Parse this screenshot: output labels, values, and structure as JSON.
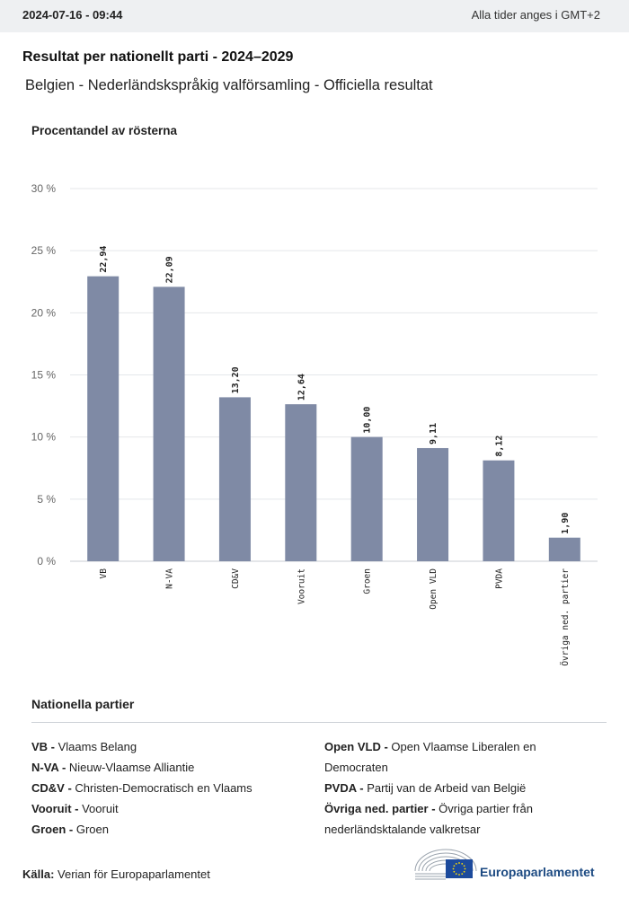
{
  "header": {
    "timestamp": "2024-07-16 - 09:44",
    "timezone_note": "Alla tider anges i GMT+2"
  },
  "title": "Resultat per nationellt parti - 2024–2029",
  "subtitle": "Belgien - Nederländskspråkig valförsamling - Officiella resultat",
  "chart_data": {
    "type": "bar",
    "title": "Resultat per nationellt parti - 2024–2029",
    "ylabel": "Procentandel av rösterna",
    "xlabel": "",
    "categories": [
      "VB",
      "N-VA",
      "CD&V",
      "Vooruit",
      "Groen",
      "Open VLD",
      "PVDA",
      "Övriga ned. partier"
    ],
    "values": [
      22.94,
      22.09,
      13.2,
      12.64,
      10.0,
      9.11,
      8.12,
      1.9
    ],
    "value_labels": [
      "22,94",
      "22,09",
      "13,20",
      "12,64",
      "10,00",
      "9,11",
      "8,12",
      "1,90"
    ],
    "ylim": [
      0,
      30
    ],
    "yticks": [
      0,
      5,
      10,
      15,
      20,
      25,
      30
    ],
    "ytick_labels": [
      "0 %",
      "5 %",
      "10 %",
      "15 %",
      "20 %",
      "25 %",
      "30 %"
    ],
    "grid": true,
    "bar_color": "#7f8aa5"
  },
  "legend": {
    "title": "Nationella partier",
    "left": [
      {
        "abbr": "VB -",
        "name": "Vlaams Belang"
      },
      {
        "abbr": "N-VA -",
        "name": "Nieuw-Vlaamse Alliantie"
      },
      {
        "abbr": "CD&V -",
        "name": "Christen-Democratisch en Vlaams"
      },
      {
        "abbr": "Vooruit -",
        "name": "Vooruit"
      },
      {
        "abbr": "Groen -",
        "name": "Groen"
      }
    ],
    "right": [
      {
        "abbr": "Open VLD -",
        "name": "Open Vlaamse Liberalen en Democraten"
      },
      {
        "abbr": "PVDA -",
        "name": "Partij van de Arbeid van België"
      },
      {
        "abbr": "Övriga ned. partier -",
        "name": "Övriga partier från nederländsktalande valkretsar"
      }
    ]
  },
  "source": {
    "label": "Källa:",
    "text": "Verian för Europaparlamentet"
  },
  "logo": {
    "text": "Europaparlamentet",
    "flag_color": "#1c4a9c",
    "star_color": "#ffdd00"
  }
}
